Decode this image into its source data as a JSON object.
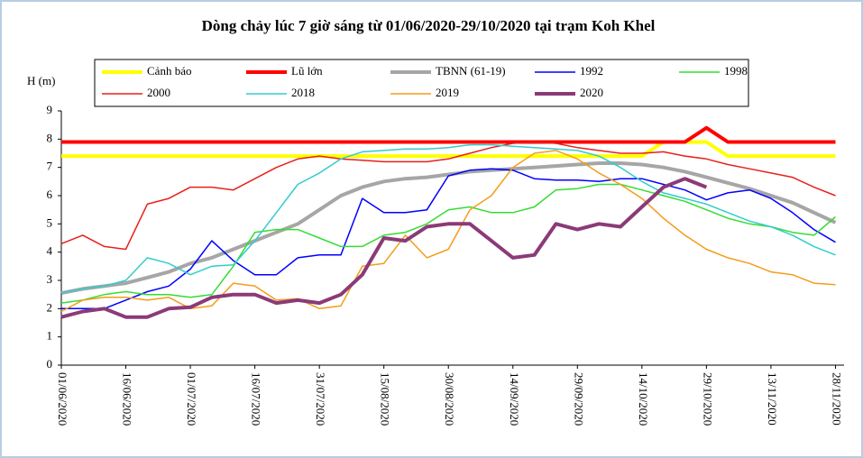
{
  "chart_data": {
    "type": "line",
    "title": "Dòng chảy lúc 7 giờ sáng từ 01/06/2020-29/10/2020 tại trạm Koh Khel",
    "y_label": "H (m)",
    "x": [
      "01/06/2020",
      "06/06/2020",
      "11/06/2020",
      "16/06/2020",
      "21/06/2020",
      "26/06/2020",
      "01/07/2020",
      "06/07/2020",
      "11/07/2020",
      "16/07/2020",
      "21/07/2020",
      "26/07/2020",
      "31/07/2020",
      "05/08/2020",
      "10/08/2020",
      "15/08/2020",
      "20/08/2020",
      "25/08/2020",
      "30/08/2020",
      "04/09/2020",
      "09/09/2020",
      "14/09/2020",
      "19/09/2020",
      "24/09/2020",
      "29/09/2020",
      "04/10/2020",
      "09/10/2020",
      "14/10/2020",
      "19/10/2020",
      "24/10/2020",
      "29/10/2020",
      "03/11/2020",
      "08/11/2020",
      "13/11/2020",
      "18/11/2020",
      "23/11/2020",
      "28/11/2020"
    ],
    "xlim": [
      "01/06/2020",
      "30/11/2020"
    ],
    "xticks": [
      "01/06/2020",
      "16/06/2020",
      "01/07/2020",
      "16/07/2020",
      "31/07/2020",
      "15/08/2020",
      "30/08/2020",
      "14/09/2020",
      "29/09/2020",
      "14/10/2020",
      "29/10/2020",
      "13/11/2020",
      "28/11/2020"
    ],
    "ylim": [
      0,
      9
    ],
    "yticks": [
      0,
      1,
      2,
      3,
      4,
      5,
      6,
      7,
      8,
      9
    ],
    "grid": false,
    "series": [
      {
        "name": "Cảnh báo",
        "color": "#ffff00",
        "values": [
          7.4,
          7.4,
          7.4,
          7.4,
          7.4,
          7.4,
          7.4,
          7.4,
          7.4,
          7.4,
          7.4,
          7.4,
          7.4,
          7.4,
          7.4,
          7.4,
          7.4,
          7.4,
          7.4,
          7.4,
          7.4,
          7.4,
          7.4,
          7.4,
          7.4,
          7.4,
          7.4,
          7.4,
          7.9,
          7.9,
          7.9,
          7.4,
          7.4,
          7.4,
          7.4,
          7.4,
          7.4
        ]
      },
      {
        "name": "Lũ lớn",
        "color": "#ff0000",
        "values": [
          7.9,
          7.9,
          7.9,
          7.9,
          7.9,
          7.9,
          7.9,
          7.9,
          7.9,
          7.9,
          7.9,
          7.9,
          7.9,
          7.9,
          7.9,
          7.9,
          7.9,
          7.9,
          7.9,
          7.9,
          7.9,
          7.9,
          7.9,
          7.9,
          7.9,
          7.9,
          7.9,
          7.9,
          7.9,
          7.9,
          8.4,
          7.9,
          7.9,
          7.9,
          7.9,
          7.9,
          7.9
        ]
      },
      {
        "name": "TBNN (61-19)",
        "color": "#a6a6a6",
        "values": [
          2.55,
          2.7,
          2.8,
          2.9,
          3.1,
          3.3,
          3.6,
          3.8,
          4.1,
          4.4,
          4.7,
          5.0,
          5.5,
          6.0,
          6.3,
          6.5,
          6.6,
          6.65,
          6.75,
          6.85,
          6.9,
          6.95,
          7.0,
          7.05,
          7.1,
          7.15,
          7.15,
          7.1,
          7.0,
          6.85,
          6.65,
          6.45,
          6.25,
          6.0,
          5.75,
          5.4,
          5.05
        ]
      },
      {
        "name": "1992",
        "color": "#0000ff",
        "values": [
          2.0,
          2.0,
          2.0,
          2.3,
          2.6,
          2.8,
          3.4,
          4.4,
          3.7,
          3.2,
          3.2,
          3.8,
          3.9,
          3.9,
          5.9,
          5.4,
          5.4,
          5.5,
          6.7,
          6.9,
          6.95,
          6.9,
          6.6,
          6.55,
          6.55,
          6.5,
          6.6,
          6.6,
          6.4,
          6.2,
          5.85,
          6.1,
          6.2,
          5.9,
          5.4,
          4.8,
          4.35
        ]
      },
      {
        "name": "1998",
        "color": "#33dd33",
        "values": [
          2.2,
          2.3,
          2.5,
          2.6,
          2.5,
          2.5,
          2.4,
          2.5,
          3.5,
          4.7,
          4.8,
          4.8,
          4.5,
          4.2,
          4.2,
          4.6,
          4.7,
          5.0,
          5.5,
          5.6,
          5.4,
          5.4,
          5.6,
          6.2,
          6.25,
          6.4,
          6.4,
          6.2,
          6.0,
          5.8,
          5.5,
          5.2,
          5.0,
          4.9,
          4.7,
          4.6,
          5.25
        ]
      },
      {
        "name": "2000",
        "color": "#e8201a",
        "values": [
          4.3,
          4.6,
          4.2,
          4.1,
          5.7,
          5.9,
          6.3,
          6.3,
          6.2,
          6.6,
          7.0,
          7.3,
          7.4,
          7.3,
          7.25,
          7.2,
          7.2,
          7.2,
          7.3,
          7.5,
          7.7,
          7.85,
          7.9,
          7.85,
          7.7,
          7.6,
          7.5,
          7.5,
          7.55,
          7.4,
          7.3,
          7.1,
          6.95,
          6.8,
          6.65,
          6.3,
          6.0
        ]
      },
      {
        "name": "2018",
        "color": "#33cccc",
        "values": [
          2.55,
          2.7,
          2.8,
          3.0,
          3.8,
          3.6,
          3.2,
          3.5,
          3.55,
          4.4,
          5.4,
          6.4,
          6.8,
          7.3,
          7.55,
          7.6,
          7.65,
          7.65,
          7.7,
          7.8,
          7.8,
          7.75,
          7.7,
          7.65,
          7.6,
          7.4,
          7.0,
          6.5,
          6.1,
          5.9,
          5.7,
          5.4,
          5.1,
          4.9,
          4.6,
          4.2,
          3.9
        ]
      },
      {
        "name": "2019",
        "color": "#f59c1a",
        "values": [
          1.9,
          2.3,
          2.4,
          2.4,
          2.3,
          2.4,
          2.0,
          2.1,
          2.9,
          2.8,
          2.3,
          2.35,
          2.0,
          2.1,
          3.5,
          3.6,
          4.6,
          3.8,
          4.1,
          5.5,
          6.0,
          7.0,
          7.5,
          7.6,
          7.3,
          6.8,
          6.4,
          5.9,
          5.2,
          4.6,
          4.1,
          3.8,
          3.6,
          3.3,
          3.2,
          2.9,
          2.85
        ]
      },
      {
        "name": "2020",
        "color": "#8b3a78",
        "values": [
          1.7,
          1.9,
          2.0,
          1.7,
          1.7,
          2.0,
          2.05,
          2.4,
          2.5,
          2.5,
          2.2,
          2.3,
          2.2,
          2.5,
          3.2,
          4.5,
          4.4,
          4.9,
          5.0,
          5.0,
          4.4,
          3.8,
          3.9,
          5.0,
          4.8,
          5.0,
          4.9,
          5.6,
          6.3,
          6.6,
          6.3,
          null,
          null,
          null,
          null,
          null,
          null
        ]
      }
    ]
  }
}
